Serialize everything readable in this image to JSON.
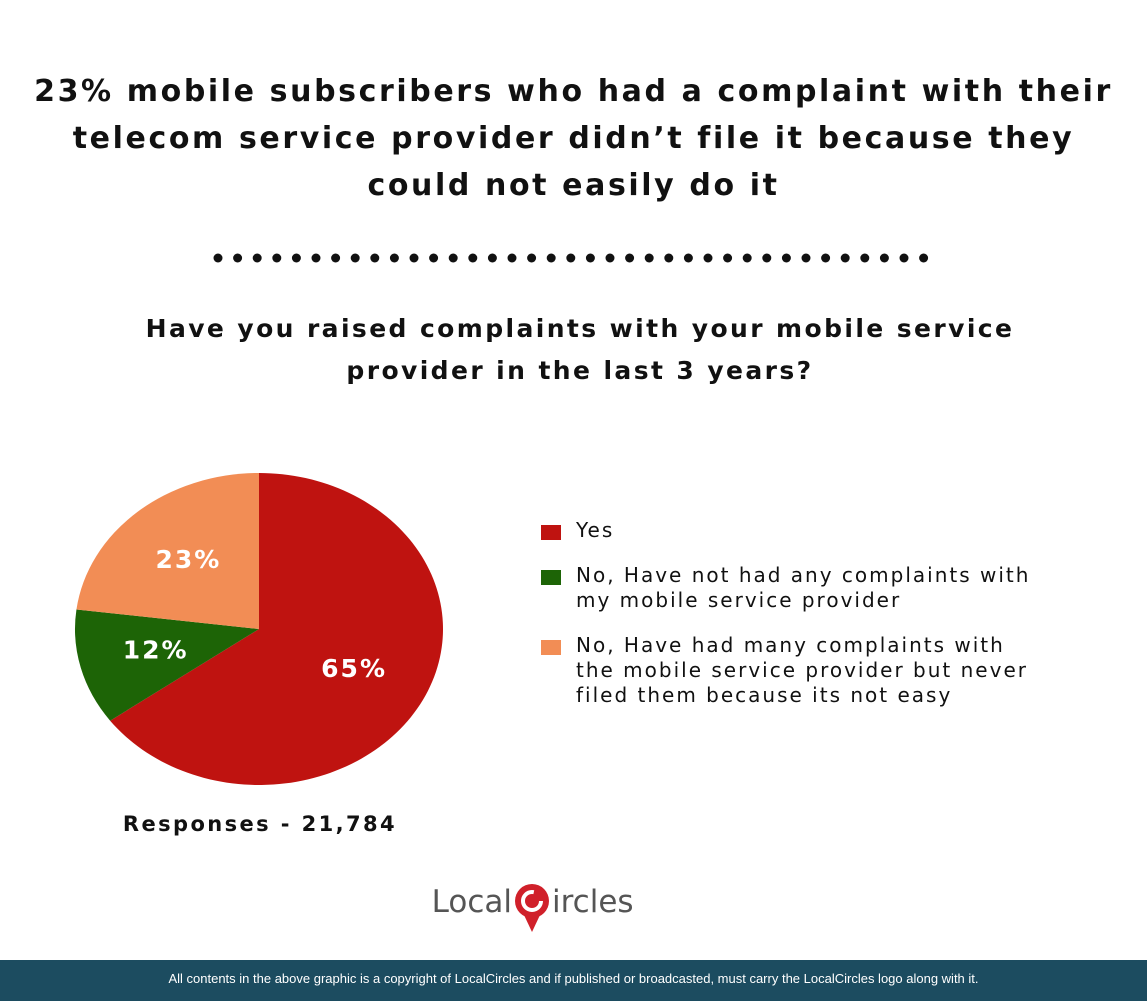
{
  "chart_data": {
    "type": "pie",
    "title": "23% mobile subscribers who had a complaint with their telecom service provider didn’t file it because they could not easily do it",
    "subtitle": "Have you raised complaints with your mobile service provider in the last 3 years?",
    "categories": [
      "Yes",
      "No, Have not had any complaints with my mobile service provider",
      "No, Have had many complaints with the mobile service provider but never filed them because its not easy"
    ],
    "values": [
      65,
      12,
      23
    ],
    "value_labels": [
      "65%",
      "12%",
      "23%"
    ],
    "colors": [
      "#bf1310",
      "#1d6406",
      "#f28d55"
    ],
    "annotation": "Responses - 21,784"
  },
  "logo": {
    "left": "Local",
    "right": "ircles"
  },
  "footer": "All contents in the above graphic is a copyright of LocalCircles and if published or broadcasted, must carry the LocalCircles logo along with it."
}
